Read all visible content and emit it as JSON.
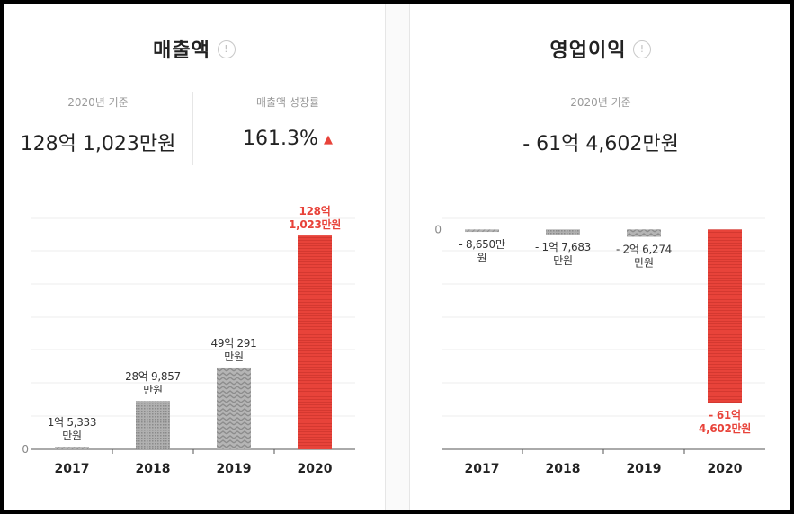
{
  "revenue": {
    "title": "매출액",
    "basis_label": "2020년 기준",
    "value": "128억 1,023만원",
    "growth_label": "매출액 성장률",
    "growth_value": "161.3%",
    "growth_direction": "up"
  },
  "operating_profit": {
    "title": "영업이익",
    "basis_label": "2020년 기준",
    "value": "- 61억 4,602만원"
  },
  "colors": {
    "highlight": "#e8433a",
    "bar_gray": "#a9a9a9",
    "text_dark": "#222222",
    "text_muted": "#999999"
  },
  "chart_data": [
    {
      "type": "bar",
      "title": "매출액",
      "categories": [
        "2017",
        "2018",
        "2019",
        "2020"
      ],
      "values": [
        1.5333,
        28.9857,
        49.0291,
        128.1023
      ],
      "unit_note": "억원",
      "data_labels": [
        [
          "1억 5,333",
          "만원"
        ],
        [
          "28억 9,857",
          "만원"
        ],
        [
          "49억 291",
          "만원"
        ],
        [
          "128억",
          "1,023만원"
        ]
      ],
      "y_tick_labels": [
        "0"
      ],
      "ylim": [
        0,
        140
      ],
      "highlight_index": 3,
      "grid": true
    },
    {
      "type": "bar",
      "title": "영업이익",
      "categories": [
        "2017",
        "2018",
        "2019",
        "2020"
      ],
      "values": [
        -0.865,
        -1.7683,
        -2.6274,
        -61.4602
      ],
      "unit_note": "억원",
      "data_labels": [
        [
          "- 8,650만",
          "원"
        ],
        [
          "- 1억 7,683",
          "만원"
        ],
        [
          "- 2억 6,274",
          "만원"
        ],
        [
          "- 61억",
          "4,602만원"
        ]
      ],
      "y_tick_labels": [
        "0"
      ],
      "ylim": [
        -78,
        17
      ],
      "highlight_index": 3,
      "grid": true
    }
  ]
}
